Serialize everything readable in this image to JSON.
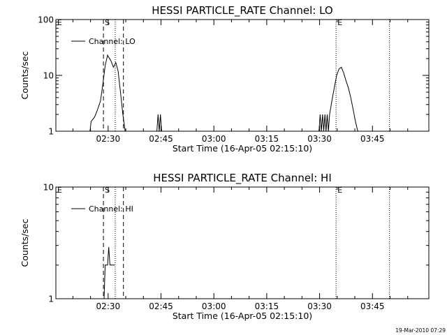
{
  "chart_data": [
    {
      "type": "line",
      "title": "HESSI PARTICLE_RATE Channel: LO",
      "xlabel": "Start Time (16-Apr-05 02:15:10)",
      "ylabel": "Counts/sec",
      "y_scale": "log",
      "ylim": [
        1,
        100
      ],
      "y_ticks": [
        {
          "v": 1,
          "label": "1"
        },
        {
          "v": 10,
          "label": "10"
        },
        {
          "v": 100,
          "label": "100"
        }
      ],
      "xlim": [
        "02:15:10",
        "04:01:00"
      ],
      "x_ticks": [
        "02:30",
        "02:45",
        "03:00",
        "03:15",
        "03:30",
        "03:45"
      ],
      "legend": {
        "position": "top-left",
        "entries": [
          "Channel: LO"
        ]
      },
      "markers": [
        {
          "label": "E",
          "time": "02:15:10",
          "style": "none"
        },
        {
          "label": "S",
          "time": "02:28:40",
          "style": "dashed"
        },
        {
          "label": "",
          "time": "02:32:00",
          "style": "dotted"
        },
        {
          "label": "",
          "time": "02:34:20",
          "style": "dashed"
        },
        {
          "label": "E",
          "time": "03:34:40",
          "style": "dotted"
        },
        {
          "label": "",
          "time": "03:49:50",
          "style": "dotted"
        }
      ],
      "series": [
        {
          "name": "Channel: LO",
          "points": [
            [
              "02:24:50",
              1
            ],
            [
              "02:25:10",
              1.5
            ],
            [
              "02:26:10",
              1.8
            ],
            [
              "02:26:50",
              2.3
            ],
            [
              "02:27:50",
              3.5
            ],
            [
              "02:28:30",
              7
            ],
            [
              "02:29:10",
              15
            ],
            [
              "02:29:50",
              23
            ],
            [
              "02:30:50",
              18
            ],
            [
              "02:31:30",
              14
            ],
            [
              "02:32:10",
              17
            ],
            [
              "02:32:50",
              12
            ],
            [
              "02:33:30",
              5
            ],
            [
              "02:34:10",
              2
            ],
            [
              "02:34:50",
              1
            ],
            [
              "02:43:50",
              1
            ],
            [
              "02:44:10",
              2
            ],
            [
              "02:44:30",
              1
            ],
            [
              "02:44:50",
              2
            ],
            [
              "02:45:10",
              1
            ],
            [
              "03:29:50",
              1
            ],
            [
              "03:30:10",
              2
            ],
            [
              "03:30:30",
              1
            ],
            [
              "03:30:50",
              2
            ],
            [
              "03:31:10",
              1
            ],
            [
              "03:31:30",
              2
            ],
            [
              "03:31:50",
              1
            ],
            [
              "03:32:10",
              2
            ],
            [
              "03:32:30",
              1
            ],
            [
              "03:32:50",
              2
            ],
            [
              "03:33:30",
              3.5
            ],
            [
              "03:34:10",
              6
            ],
            [
              "03:34:50",
              10
            ],
            [
              "03:35:30",
              13
            ],
            [
              "03:36:10",
              14
            ],
            [
              "03:36:50",
              11
            ],
            [
              "03:37:30",
              8
            ],
            [
              "03:38:10",
              6
            ],
            [
              "03:38:50",
              4
            ],
            [
              "03:39:30",
              2.5
            ],
            [
              "03:40:10",
              1.5
            ],
            [
              "03:40:50",
              1
            ]
          ]
        }
      ]
    },
    {
      "type": "line",
      "title": "HESSI PARTICLE_RATE Channel: HI",
      "xlabel": "Start Time (16-Apr-05 02:15:10)",
      "ylabel": "Counts/sec",
      "y_scale": "log",
      "ylim": [
        1,
        10
      ],
      "y_ticks": [
        {
          "v": 1,
          "label": "1"
        },
        {
          "v": 10,
          "label": "10"
        }
      ],
      "xlim": [
        "02:15:10",
        "04:01:00"
      ],
      "x_ticks": [
        "02:30",
        "02:45",
        "03:00",
        "03:15",
        "03:30",
        "03:45"
      ],
      "legend": {
        "position": "top-left",
        "entries": [
          "Channel: HI"
        ]
      },
      "markers": [
        {
          "label": "E",
          "time": "02:15:10",
          "style": "none"
        },
        {
          "label": "S",
          "time": "02:28:40",
          "style": "dashed"
        },
        {
          "label": "",
          "time": "02:32:00",
          "style": "dotted"
        },
        {
          "label": "",
          "time": "02:34:20",
          "style": "dashed"
        },
        {
          "label": "E",
          "time": "03:34:40",
          "style": "dotted"
        },
        {
          "label": "",
          "time": "03:49:50",
          "style": "dotted"
        }
      ],
      "series": [
        {
          "name": "Channel: HI",
          "points": [
            [
              "02:28:50",
              1
            ],
            [
              "02:29:10",
              2
            ],
            [
              "02:29:50",
              2
            ],
            [
              "02:30:10",
              2.9
            ],
            [
              "02:30:30",
              2
            ],
            [
              "02:31:50",
              2
            ]
          ]
        }
      ]
    }
  ],
  "footer": "19-Mar-2010 07:29"
}
